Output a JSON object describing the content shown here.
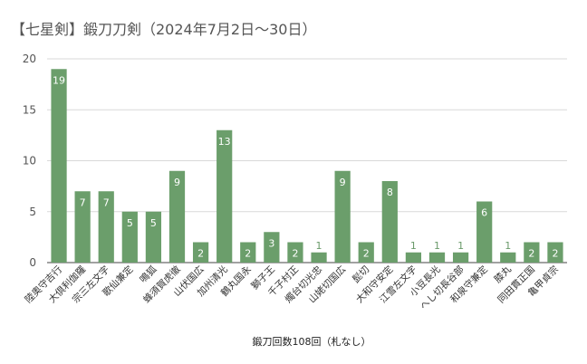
{
  "chart_data": {
    "type": "bar",
    "title": "【七星剣】鍛刀刀剣（2024年7月2日～30日）",
    "xlabel": "鍛刀回数108回（札なし）",
    "ylabel": "",
    "ylim": [
      0,
      20
    ],
    "yticks": [
      0,
      5,
      10,
      15,
      20
    ],
    "grid": true,
    "legend": "none",
    "bar_color": "#6b9e6b",
    "categories": [
      "陸奥守吉行",
      "大倶利伽羅",
      "宗三左文字",
      "歌仙兼定",
      "鳴狐",
      "蜂須賀虎徹",
      "山伏国広",
      "加州清光",
      "鶴丸国永",
      "獅子王",
      "千子村正",
      "燭台切光忠",
      "山姥切国広",
      "髭切",
      "大和守安定",
      "江雪左文字",
      "小豆長光",
      "へし切長谷部",
      "和泉守兼定",
      "膝丸",
      "同田貫正国",
      "亀甲貞宗"
    ],
    "values": [
      19,
      7,
      7,
      5,
      5,
      9,
      2,
      13,
      2,
      3,
      2,
      1,
      9,
      2,
      8,
      1,
      1,
      1,
      6,
      1,
      2,
      2
    ]
  }
}
